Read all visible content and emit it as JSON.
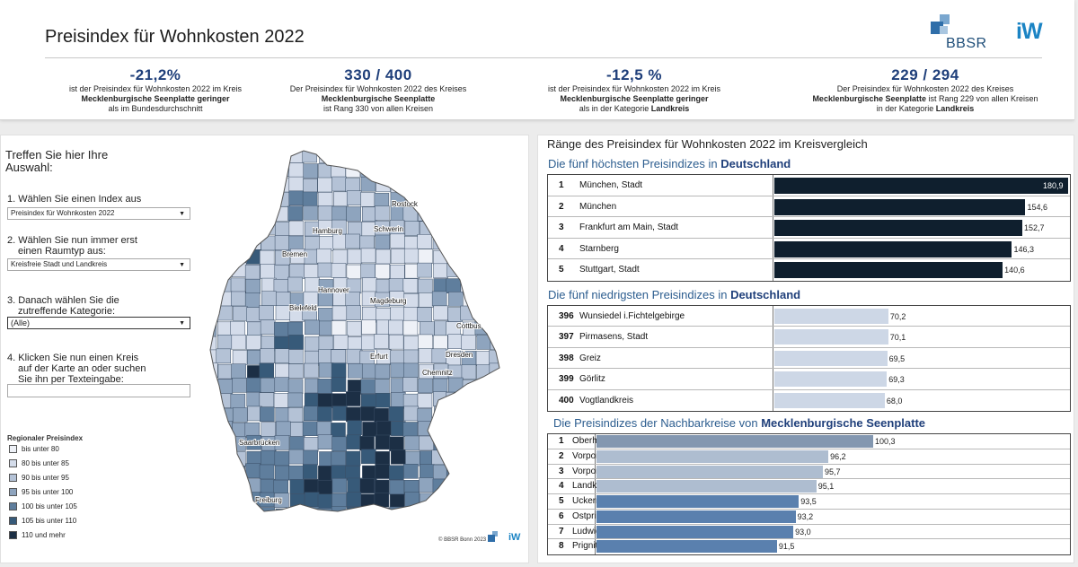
{
  "header": {
    "title": "Preisindex für Wohnkosten 2022",
    "logo_bbsr": "BBSR",
    "logo_iw": "iW",
    "kpis": [
      {
        "value": "-21,2%",
        "line1": "ist der Preisindex für Wohnkosten 2022 im Kreis",
        "line2": "Mecklenburgische Seenplatte geringer",
        "line3": "als im Bundesdurchschnitt"
      },
      {
        "value": "330 / 400",
        "line1": "Der Preisindex für Wohnkosten 2022 des Kreises",
        "line2": "Mecklenburgische Seenplatte",
        "line3": "ist Rang 330 von allen Kreisen"
      },
      {
        "value": "-12,5 %",
        "line1": "ist der Preisindex für Wohnkosten 2022 im Kreis",
        "line2": "Mecklenburgische Seenplatte geringer",
        "line3a": "als in der Kategorie ",
        "line3b": "Landkreis"
      },
      {
        "value": "229 / 294",
        "line1": "Der Preisindex für Wohnkosten 2022 des Kreises",
        "line2a": "Mecklenburgische Seenplatte",
        "line2b": " ist Rang 229 von allen Kreisen",
        "line3a": "in der Kategorie ",
        "line3b": "Landkreis"
      }
    ]
  },
  "left_panel": {
    "prompt_line1": "Treffen Sie hier Ihre",
    "prompt_line2": "Auswahl:",
    "step1_label": "1. Wählen Sie einen Index aus",
    "step1_value": "Preisindex für Wohnkosten 2022",
    "step2_label_1": "2. Wählen Sie nun immer erst",
    "step2_label_2": "einen Raumtyp aus:",
    "step2_value": "Kreisfreie Stadt und Landkreis",
    "step3_label_1": "3. Danach wählen Sie die",
    "step3_label_2": "zutreffende Kategorie:",
    "step3_value": "(Alle)",
    "step4_label_1": "4. Klicken Sie nun einen Kreis",
    "step4_label_2": "auf der Karte an oder suchen",
    "step4_label_3": "Sie ihn per Texteingabe:",
    "search_value": "",
    "legend_title": "Regionaler Preisindex",
    "legend": [
      {
        "label": "bis unter 80",
        "color": "#eef1f7"
      },
      {
        "label": "80 bis unter 85",
        "color": "#d4dcea"
      },
      {
        "label": "90 bis unter 95",
        "color": "#b4c2d6"
      },
      {
        "label": "95 bis unter 100",
        "color": "#8ea4be"
      },
      {
        "label": "100 bis unter 105",
        "color": "#5f7e9d"
      },
      {
        "label": "105 bis unter 110",
        "color": "#375a79"
      },
      {
        "label": "110 und mehr",
        "color": "#1c2f45"
      }
    ],
    "map_labels": [
      "Rostock",
      "Hamburg",
      "Schwerin",
      "Bremen",
      "Hannover",
      "Bielefeld",
      "Magdeburg",
      "Cottbus",
      "Dresden",
      "Erfurt",
      "Chemnitz",
      "Saarbrücken",
      "Freiburg"
    ],
    "copyright": "© BBSR Bonn 2023",
    "map_logo_iw": "iW"
  },
  "right_panel": {
    "title": "Ränge des Preisindex für Wohnkosten 2022 im Kreisvergleich",
    "top5_title": "Die fünf höchsten Preisindizes in ",
    "top5_region": "Deutschland",
    "top5": [
      {
        "rank": "1",
        "name": "München, Stadt",
        "value": 180.9,
        "label": "180,9"
      },
      {
        "rank": "2",
        "name": "München",
        "value": 154.6,
        "label": "154,6"
      },
      {
        "rank": "3",
        "name": "Frankfurt am Main, Stadt",
        "value": 152.7,
        "label": "152,7"
      },
      {
        "rank": "4",
        "name": "Starnberg",
        "value": 146.3,
        "label": "146,3"
      },
      {
        "rank": "5",
        "name": "Stuttgart, Stadt",
        "value": 140.6,
        "label": "140,6"
      }
    ],
    "bottom5_title": "Die fünf niedrigsten Preisindizes in ",
    "bottom5_region": "Deutschland",
    "bottom5": [
      {
        "rank": "396",
        "name": "Wunsiedel i.Fichtelgebirge",
        "value": 70.2,
        "label": "70,2"
      },
      {
        "rank": "397",
        "name": "Pirmasens, Stadt",
        "value": 70.1,
        "label": "70,1"
      },
      {
        "rank": "398",
        "name": "Greiz",
        "value": 69.5,
        "label": "69,5"
      },
      {
        "rank": "399",
        "name": "Görlitz",
        "value": 69.3,
        "label": "69,3"
      },
      {
        "rank": "400",
        "name": "Vogtlandkreis",
        "value": 68.0,
        "label": "68,0"
      }
    ],
    "neighbors_title": "Die Preisindizes der Nachbarkreise von ",
    "neighbors_region": "Mecklenburgische Seenplatte",
    "neighbors": [
      {
        "rank": "1",
        "name": "Oberhavel",
        "value": 100.3,
        "label": "100,3",
        "color": "#8397b0"
      },
      {
        "rank": "2",
        "name": "Vorpommern-Greifswald",
        "value": 96.2,
        "label": "96,2",
        "color": "#aebdd0"
      },
      {
        "rank": "3",
        "name": "Vorpommern-Rügen",
        "value": 95.7,
        "label": "95,7",
        "color": "#aebdd0"
      },
      {
        "rank": "4",
        "name": "Landkreis Rostock",
        "value": 95.1,
        "label": "95,1",
        "color": "#aebdd0"
      },
      {
        "rank": "5",
        "name": "Uckermark",
        "value": 93.5,
        "label": "93,5",
        "color": "#5a80ae"
      },
      {
        "rank": "6",
        "name": "Ostprignitz-Ruppin",
        "value": 93.2,
        "label": "93,2",
        "color": "#5a80ae"
      },
      {
        "rank": "7",
        "name": "Ludwigslust-Parchim",
        "value": 93.0,
        "label": "93,0",
        "color": "#5a80ae"
      },
      {
        "rank": "8",
        "name": "Prignitz",
        "value": 91.5,
        "label": "91,5",
        "color": "#5a80ae"
      }
    ]
  }
}
